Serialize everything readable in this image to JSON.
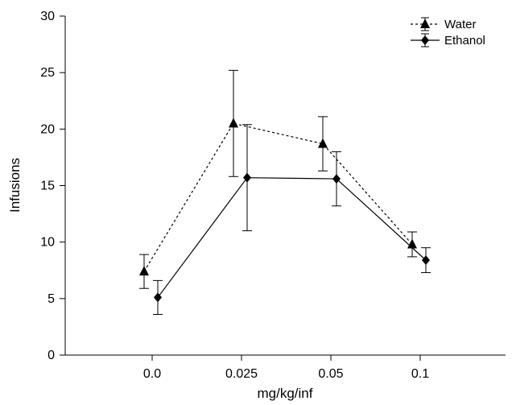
{
  "chart_data": {
    "type": "line",
    "title": "",
    "xlabel": "mg/kg/inf",
    "ylabel": "Infusions",
    "categories": [
      "0.0",
      "0.025",
      "0.05",
      "0.1"
    ],
    "ylim": [
      0,
      30
    ],
    "yticks": [
      0,
      5,
      10,
      15,
      20,
      25,
      30
    ],
    "grid": false,
    "legend_position": "top-right",
    "series": [
      {
        "name": "Water",
        "values": [
          7.4,
          20.5,
          18.7,
          9.8
        ],
        "error": [
          1.5,
          4.7,
          2.4,
          1.1
        ],
        "marker": "triangle",
        "line_style": "dashed",
        "color": "#000000"
      },
      {
        "name": "Ethanol",
        "values": [
          5.1,
          15.7,
          15.6,
          8.4
        ],
        "error": [
          1.5,
          4.7,
          2.4,
          1.1
        ],
        "marker": "diamond",
        "line_style": "solid",
        "color": "#000000"
      }
    ]
  }
}
